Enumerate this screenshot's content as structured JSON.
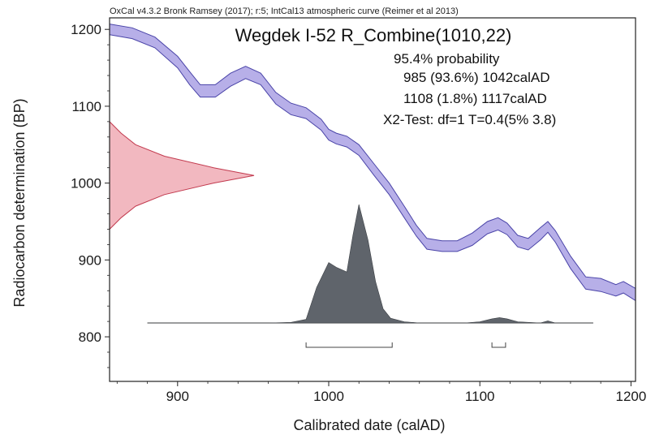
{
  "header": "OxCal v4.3.2 Bronk Ramsey (2017); r:5; IntCal13 atmospheric curve (Reimer et al 2013)",
  "chart_data": {
    "type": "area",
    "title": "Wegdek I-52 R_Combine(1010,22)",
    "xlabel": "Calibrated date (calAD)",
    "ylabel": "Radiocarbon determination (BP)",
    "xlim": [
      855,
      1203
    ],
    "ylim": [
      742,
      1215
    ],
    "xticks": [
      900,
      1000,
      1100,
      1200
    ],
    "yticks": [
      800,
      900,
      1000,
      1100,
      1200
    ],
    "annotations": [
      "95.4% probability",
      "985 (93.6%) 1042calAD",
      "1108 (1.8%) 1117calAD",
      "X2-Test: df=1 T=0.4(5% 3.8)"
    ],
    "calibration_curve": {
      "x": [
        855,
        870,
        885,
        900,
        908,
        915,
        925,
        935,
        945,
        955,
        965,
        975,
        985,
        995,
        1000,
        1005,
        1012,
        1020,
        1030,
        1040,
        1050,
        1058,
        1065,
        1075,
        1085,
        1095,
        1105,
        1112,
        1118,
        1125,
        1132,
        1140,
        1145,
        1150,
        1160,
        1170,
        1180,
        1190,
        1195,
        1203
      ],
      "upper": [
        1207,
        1202,
        1190,
        1165,
        1145,
        1128,
        1128,
        1143,
        1152,
        1143,
        1118,
        1104,
        1098,
        1083,
        1070,
        1065,
        1061,
        1050,
        1025,
        1000,
        970,
        945,
        928,
        925,
        925,
        935,
        950,
        955,
        948,
        932,
        928,
        942,
        950,
        938,
        905,
        878,
        876,
        868,
        872,
        863
      ],
      "lower": [
        1193,
        1188,
        1176,
        1150,
        1128,
        1112,
        1112,
        1126,
        1136,
        1128,
        1103,
        1089,
        1084,
        1069,
        1056,
        1051,
        1047,
        1036,
        1010,
        985,
        955,
        931,
        914,
        911,
        911,
        919,
        934,
        939,
        933,
        917,
        913,
        926,
        936,
        923,
        889,
        862,
        859,
        853,
        857,
        847
      ]
    },
    "radiocarbon_distribution": {
      "y": [
        940,
        955,
        970,
        985,
        1000,
        1010,
        1020,
        1035,
        1050,
        1065,
        1080
      ],
      "density": [
        0.0,
        0.08,
        0.18,
        0.38,
        0.72,
        1.0,
        0.72,
        0.38,
        0.18,
        0.08,
        0.0
      ],
      "mean": 1010,
      "sigma": 22
    },
    "calibrated_distribution": {
      "x": [
        880,
        960,
        975,
        985,
        992,
        1000,
        1005,
        1012,
        1016,
        1020,
        1026,
        1031,
        1036,
        1041,
        1050,
        1060,
        1090,
        1100,
        1108,
        1113,
        1118,
        1125,
        1140,
        1145,
        1150,
        1175
      ],
      "density": [
        0.0,
        0.0,
        0.005,
        0.03,
        0.3,
        0.51,
        0.47,
        0.43,
        0.74,
        1.0,
        0.7,
        0.35,
        0.12,
        0.04,
        0.01,
        0.0,
        0.0,
        0.01,
        0.035,
        0.045,
        0.035,
        0.01,
        0.0,
        0.018,
        0.0,
        0.0
      ]
    },
    "ranges": [
      {
        "from": 985,
        "to": 1042,
        "percent": "93.6%"
      },
      {
        "from": 1108,
        "to": 1117,
        "percent": "1.8%"
      }
    ],
    "colors": {
      "curve_fill": "#b7afe8",
      "curve_edge": "#4a44a8",
      "radiocarbon_fill": "#f2b8c0",
      "radiocarbon_edge": "#c23a4e",
      "calibrated_fill": "#5f646b",
      "axis": "#222222"
    },
    "grid": false
  }
}
